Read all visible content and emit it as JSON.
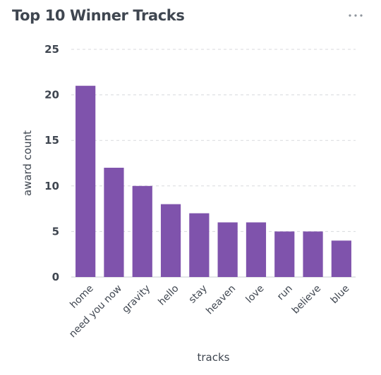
{
  "card": {
    "title": "Top 10 Winner Tracks",
    "menu_icon": "more-horizontal-icon"
  },
  "chart_data": {
    "type": "bar",
    "title": "Top 10 Winner Tracks",
    "xlabel": "tracks",
    "ylabel": "award count",
    "categories": [
      "home",
      "need you now",
      "gravity",
      "hello",
      "stay",
      "heaven",
      "love",
      "run",
      "believe",
      "blue"
    ],
    "values": [
      21,
      12,
      10,
      8,
      7,
      6,
      6,
      5,
      5,
      4
    ],
    "ylim": [
      0,
      25
    ],
    "yticks": [
      "0",
      "5",
      "10",
      "15",
      "20",
      "25"
    ],
    "grid": true,
    "legend": "none",
    "colors": {
      "bar": "#7f53ac",
      "grid": "#d8dadd",
      "text": "#3f4650",
      "axis": "#c9ccd0"
    }
  }
}
